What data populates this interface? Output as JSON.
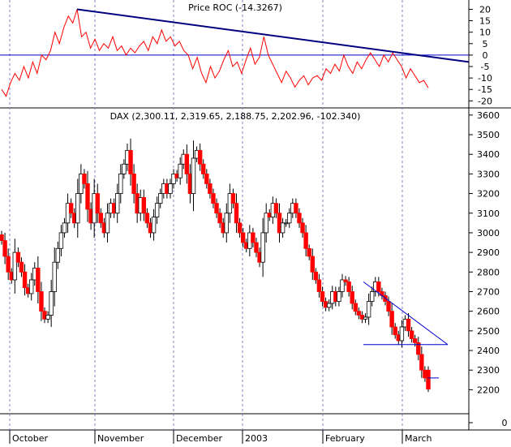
{
  "chart_data": [
    {
      "type": "line",
      "panel": "indicator",
      "title": "Price ROC (-14.3267)",
      "last_value": -14.3267,
      "ylim": [
        -22,
        23
      ],
      "yticks": [
        20,
        15,
        10,
        5,
        0,
        -5,
        -10,
        -15,
        -20
      ],
      "reference_line": 0,
      "series": [
        {
          "name": "Price ROC",
          "color": "#ff0000",
          "values": [
            -15,
            -18,
            -12,
            -8,
            -11,
            -5,
            -10,
            -3,
            -8,
            0,
            -2,
            2,
            10,
            5,
            12,
            17,
            14,
            20,
            8,
            10,
            3,
            7,
            2,
            5,
            3,
            8,
            2,
            4,
            0,
            3,
            1,
            4,
            6,
            2,
            8,
            5,
            11,
            6,
            8,
            4,
            6,
            2,
            0,
            -6,
            -1,
            -8,
            -12,
            -5,
            -10,
            -7,
            -2,
            2,
            -5,
            -3,
            -8,
            -2,
            3,
            -4,
            -1,
            8,
            0,
            -4,
            -8,
            -12,
            -7,
            -10,
            -14,
            -11,
            -9,
            -13,
            -10,
            -9,
            -11,
            -6,
            -8,
            -4,
            -7,
            0,
            -5,
            -8,
            -3,
            -6,
            -2,
            1,
            -2,
            -5,
            0,
            -3,
            1,
            -2,
            -5,
            -10,
            -6,
            -9,
            -12,
            -11,
            -14.3
          ]
        }
      ],
      "trendline_value_start": 20,
      "trendline_value_end": -3
    },
    {
      "type": "candlestick",
      "panel": "price",
      "title": "DAX (2,300.11, 2,319.65, 2,188.75, 2,202.96, -102.340)",
      "ylim": [
        2090,
        3620
      ],
      "yticks": [
        3600,
        3500,
        3400,
        3300,
        3200,
        3100,
        3000,
        2900,
        2800,
        2700,
        2600,
        2500,
        2400,
        2300,
        2200
      ],
      "xlabel_months": [
        "October",
        "November",
        "December",
        "2003",
        "February",
        "March"
      ],
      "closes": [
        2960,
        2880,
        2800,
        2760,
        2900,
        2850,
        2800,
        2720,
        2690,
        2760,
        2820,
        2700,
        2600,
        2560,
        2580,
        2700,
        2850,
        2920,
        3000,
        3050,
        3150,
        3100,
        3050,
        3200,
        3300,
        3250,
        3120,
        3050,
        3200,
        3100,
        3050,
        3000,
        3100,
        3150,
        3100,
        3200,
        3300,
        3350,
        3420,
        3300,
        3200,
        3100,
        3180,
        3100,
        3050,
        3000,
        3080,
        3150,
        3200,
        3250,
        3200,
        3250,
        3300,
        3280,
        3350,
        3400,
        3300,
        3200,
        3380,
        3420,
        3350,
        3300,
        3250,
        3200,
        3150,
        3100,
        3050,
        3000,
        3100,
        3200,
        3150,
        3050,
        3000,
        2950,
        2920,
        3000,
        2950,
        2900,
        2850,
        3000,
        3100,
        3080,
        3150,
        3100,
        3000,
        3050,
        3050,
        3100,
        3150,
        3100,
        3050,
        3000,
        2920,
        2880,
        2800,
        2760,
        2700,
        2650,
        2620,
        2640,
        2700,
        2650,
        2700,
        2760,
        2750,
        2700,
        2640,
        2600,
        2580,
        2560,
        2570,
        2650,
        2700,
        2750,
        2700,
        2680,
        2650,
        2600,
        2520,
        2480,
        2450,
        2520,
        2560,
        2500,
        2460,
        2440,
        2380,
        2300,
        2260,
        2203
      ],
      "last": {
        "open": 2300.11,
        "high": 2319.65,
        "low": 2188.75,
        "close": 2202.96,
        "change": -102.34
      },
      "annotations": [
        {
          "type": "resistance_line",
          "from_value": 2750,
          "to_value": 2430
        },
        {
          "type": "support_line",
          "value": 2430
        },
        {
          "type": "tick_marker",
          "value": 2260
        }
      ]
    },
    {
      "type": "bar",
      "panel": "volume",
      "yticks": [
        0
      ]
    }
  ],
  "colors": {
    "up": "#ffffff",
    "down": "#ff0000",
    "trend": "#000080",
    "ref": "#0000cc",
    "grid": "#8080c0"
  }
}
